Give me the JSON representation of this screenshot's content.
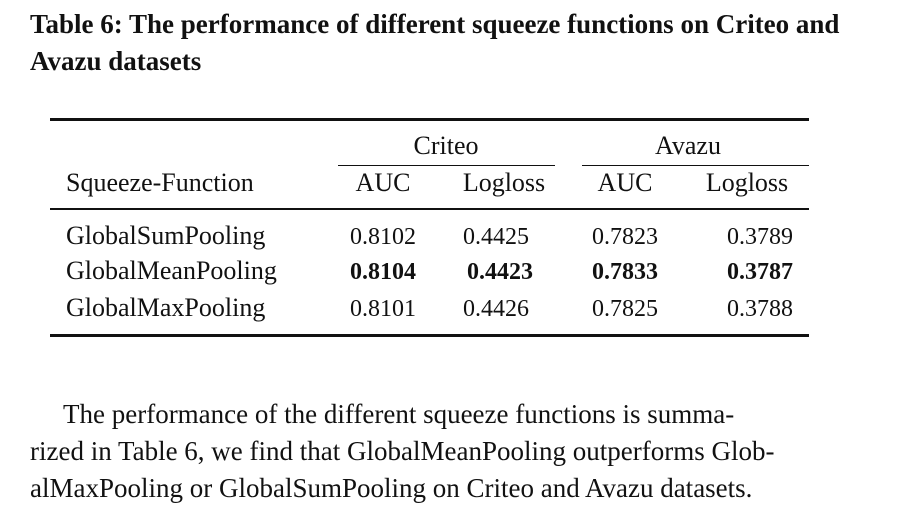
{
  "caption": "Table 6: The performance of different squeeze functions on Criteo and Avazu datasets",
  "table": {
    "groups": [
      "Criteo",
      "Avazu"
    ],
    "columns": [
      "Squeeze-Function",
      "AUC",
      "Logloss",
      "AUC",
      "Logloss"
    ],
    "rows": [
      {
        "name": "GlobalSumPooling",
        "values": [
          "0.8102",
          "0.4425",
          "0.7823",
          "0.3789"
        ]
      },
      {
        "name": "GlobalMeanPooling",
        "values": [
          "0.8104",
          "0.4423",
          "0.7833",
          "0.3787"
        ]
      },
      {
        "name": "GlobalMaxPooling",
        "values": [
          "0.8101",
          "0.4426",
          "0.7825",
          "0.3788"
        ]
      }
    ],
    "bold_row": "GlobalMeanPooling"
  },
  "paragraph": {
    "lines": [
      "The performance of the different squeeze functions is summa-",
      "rized in Table 6, we find that GlobalMeanPooling outperforms Glob-",
      "alMaxPooling or GlobalSumPooling on Criteo and Avazu datasets."
    ]
  }
}
